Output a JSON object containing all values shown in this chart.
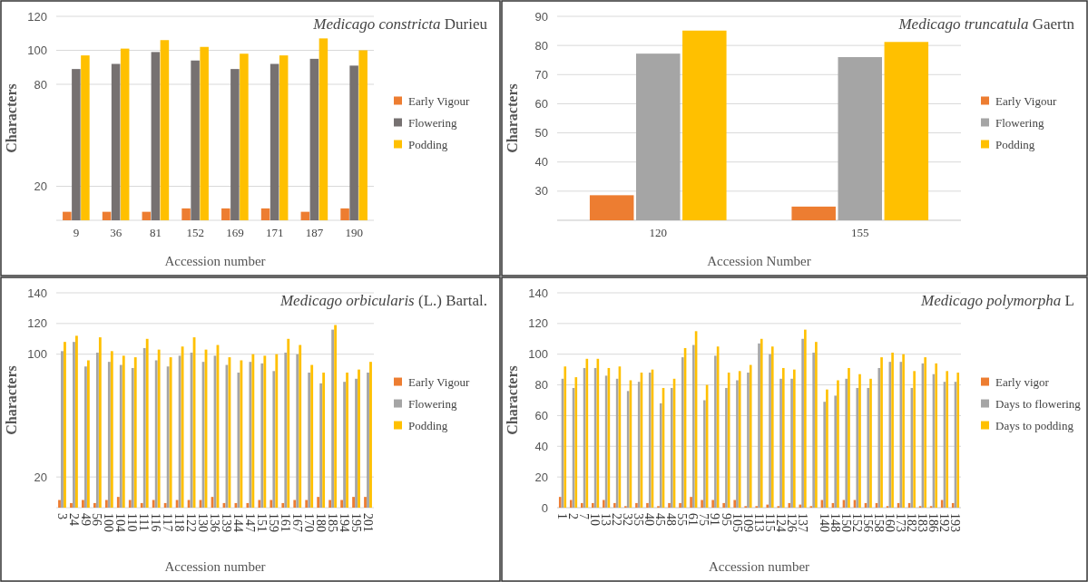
{
  "chart_data": [
    {
      "type": "bar",
      "title": "Medicago constricta Durieu",
      "xlabel": "Accession number",
      "ylabel": "Characters",
      "categories": [
        "9",
        "36",
        "81",
        "152",
        "169",
        "171",
        "187",
        "190"
      ],
      "ylim": [
        0,
        120
      ],
      "yticks": [
        20,
        80,
        100,
        120
      ],
      "grid": "y",
      "legend": "right",
      "series": [
        {
          "name": "Early Vigour",
          "color": "#ed7d31",
          "values": [
            5,
            5,
            5,
            7,
            7,
            7,
            5,
            7
          ]
        },
        {
          "name": "Flowering",
          "color": "#767171",
          "values": [
            89,
            92,
            99,
            94,
            89,
            92,
            95,
            91
          ]
        },
        {
          "name": "Podding",
          "color": "#ffc000",
          "values": [
            97,
            101,
            106,
            102,
            98,
            97,
            107,
            100
          ]
        }
      ]
    },
    {
      "type": "bar",
      "title": "Medicago truncatula Gaertn",
      "xlabel": "Accession Number",
      "ylabel": "Characters",
      "categories": [
        "120",
        "155"
      ],
      "ylim": [
        20,
        90
      ],
      "yticks": [
        {
          "value": 20,
          "label": null
        },
        30,
        40,
        50,
        60,
        70,
        80,
        90
      ],
      "grid": "y",
      "legend": "right",
      "series": [
        {
          "name": "Early Vigour",
          "color": "#ed7d31",
          "values": [
            28.6,
            24.7
          ]
        },
        {
          "name": "Flowering",
          "color": "#a5a5a5",
          "values": [
            77.2,
            76
          ]
        },
        {
          "name": "Podding",
          "color": "#ffc000",
          "values": [
            85.1,
            81.2
          ]
        }
      ]
    },
    {
      "type": "bar",
      "title": "Medicago orbicularis (L.) Bartal.",
      "xlabel": "Accession number",
      "ylabel": "Characters",
      "categories": [
        "3",
        "24",
        "49",
        "56",
        "100",
        "104",
        "110",
        "111",
        "116",
        "117",
        "118",
        "122",
        "130",
        "136",
        "139",
        "144",
        "147",
        "151",
        "159",
        "161",
        "167",
        "170",
        "180",
        "185",
        "194",
        "195",
        "201"
      ],
      "ylim": [
        0,
        140
      ],
      "yticks": [
        20,
        100,
        120,
        140
      ],
      "grid": "y",
      "legend": "right",
      "series": [
        {
          "name": "Early Vigour",
          "color": "#ed7d31",
          "values": [
            5,
            3,
            5,
            3,
            5,
            7,
            5,
            3,
            5,
            3,
            5,
            5,
            5,
            7,
            3,
            3,
            3,
            5,
            5,
            3,
            5,
            5,
            7,
            5,
            5,
            7,
            7
          ]
        },
        {
          "name": "Flowering",
          "color": "#a5a5a5",
          "values": [
            102,
            108,
            92,
            101,
            95,
            93,
            91,
            104,
            96,
            92,
            99,
            101,
            95,
            99,
            93,
            88,
            95,
            94,
            89,
            101,
            100,
            88,
            81,
            116,
            82,
            84,
            88
          ]
        },
        {
          "name": "Podding",
          "color": "#ffc000",
          "values": [
            108,
            112,
            96,
            111,
            102,
            99,
            98,
            110,
            103,
            98,
            105,
            111,
            103,
            106,
            98,
            96,
            100,
            99,
            100,
            110,
            106,
            93,
            88,
            119,
            88,
            90,
            95
          ]
        }
      ]
    },
    {
      "type": "bar",
      "title": "Medicago polymorpha L",
      "xlabel": "Accession  number",
      "ylabel": "Characters",
      "categories": [
        "1",
        "2",
        "7",
        "10",
        "13",
        "22",
        "32",
        "35",
        "40",
        "45",
        "48",
        "55",
        "61",
        "75",
        "91",
        "95",
        "105",
        "109",
        "113",
        "115",
        "124",
        "126",
        "137",
        null,
        "140",
        "148",
        "150",
        "152",
        "156",
        "158",
        "160",
        "173",
        "182",
        "183",
        "186",
        "192",
        "193"
      ],
      "ylim": [
        0,
        140
      ],
      "yticks": [
        0,
        20,
        40,
        60,
        80,
        100,
        120,
        140
      ],
      "grid": "y",
      "legend": "right",
      "series": [
        {
          "name": "Early vigor",
          "color": "#ed7d31",
          "values": [
            7,
            5,
            3,
            3,
            5,
            3,
            1,
            3,
            3,
            1,
            3,
            3,
            7,
            5,
            5,
            3,
            5,
            1,
            1,
            2,
            1,
            3,
            2,
            1,
            5,
            3,
            5,
            5,
            3,
            3,
            1,
            3,
            3,
            1,
            1,
            5,
            3
          ]
        },
        {
          "name": "Days to flowering",
          "color": "#a5a5a5",
          "values": [
            84,
            78,
            91,
            91,
            86,
            84,
            76,
            82,
            88,
            68,
            78,
            98,
            106,
            70,
            99,
            78,
            83,
            88,
            107,
            100,
            84,
            84,
            110,
            101,
            69,
            73,
            84,
            78,
            78,
            91,
            95,
            95,
            78,
            94,
            87,
            82,
            82
          ]
        },
        {
          "name": "Days to podding",
          "color": "#ffc000",
          "values": [
            92,
            85,
            97,
            97,
            91,
            92,
            83,
            88,
            90,
            78,
            84,
            104,
            115,
            80,
            105,
            88,
            89,
            93,
            110,
            105,
            91,
            90,
            116,
            108,
            77,
            83,
            91,
            87,
            84,
            98,
            101,
            100,
            89,
            98,
            94,
            89,
            88
          ]
        }
      ]
    }
  ]
}
